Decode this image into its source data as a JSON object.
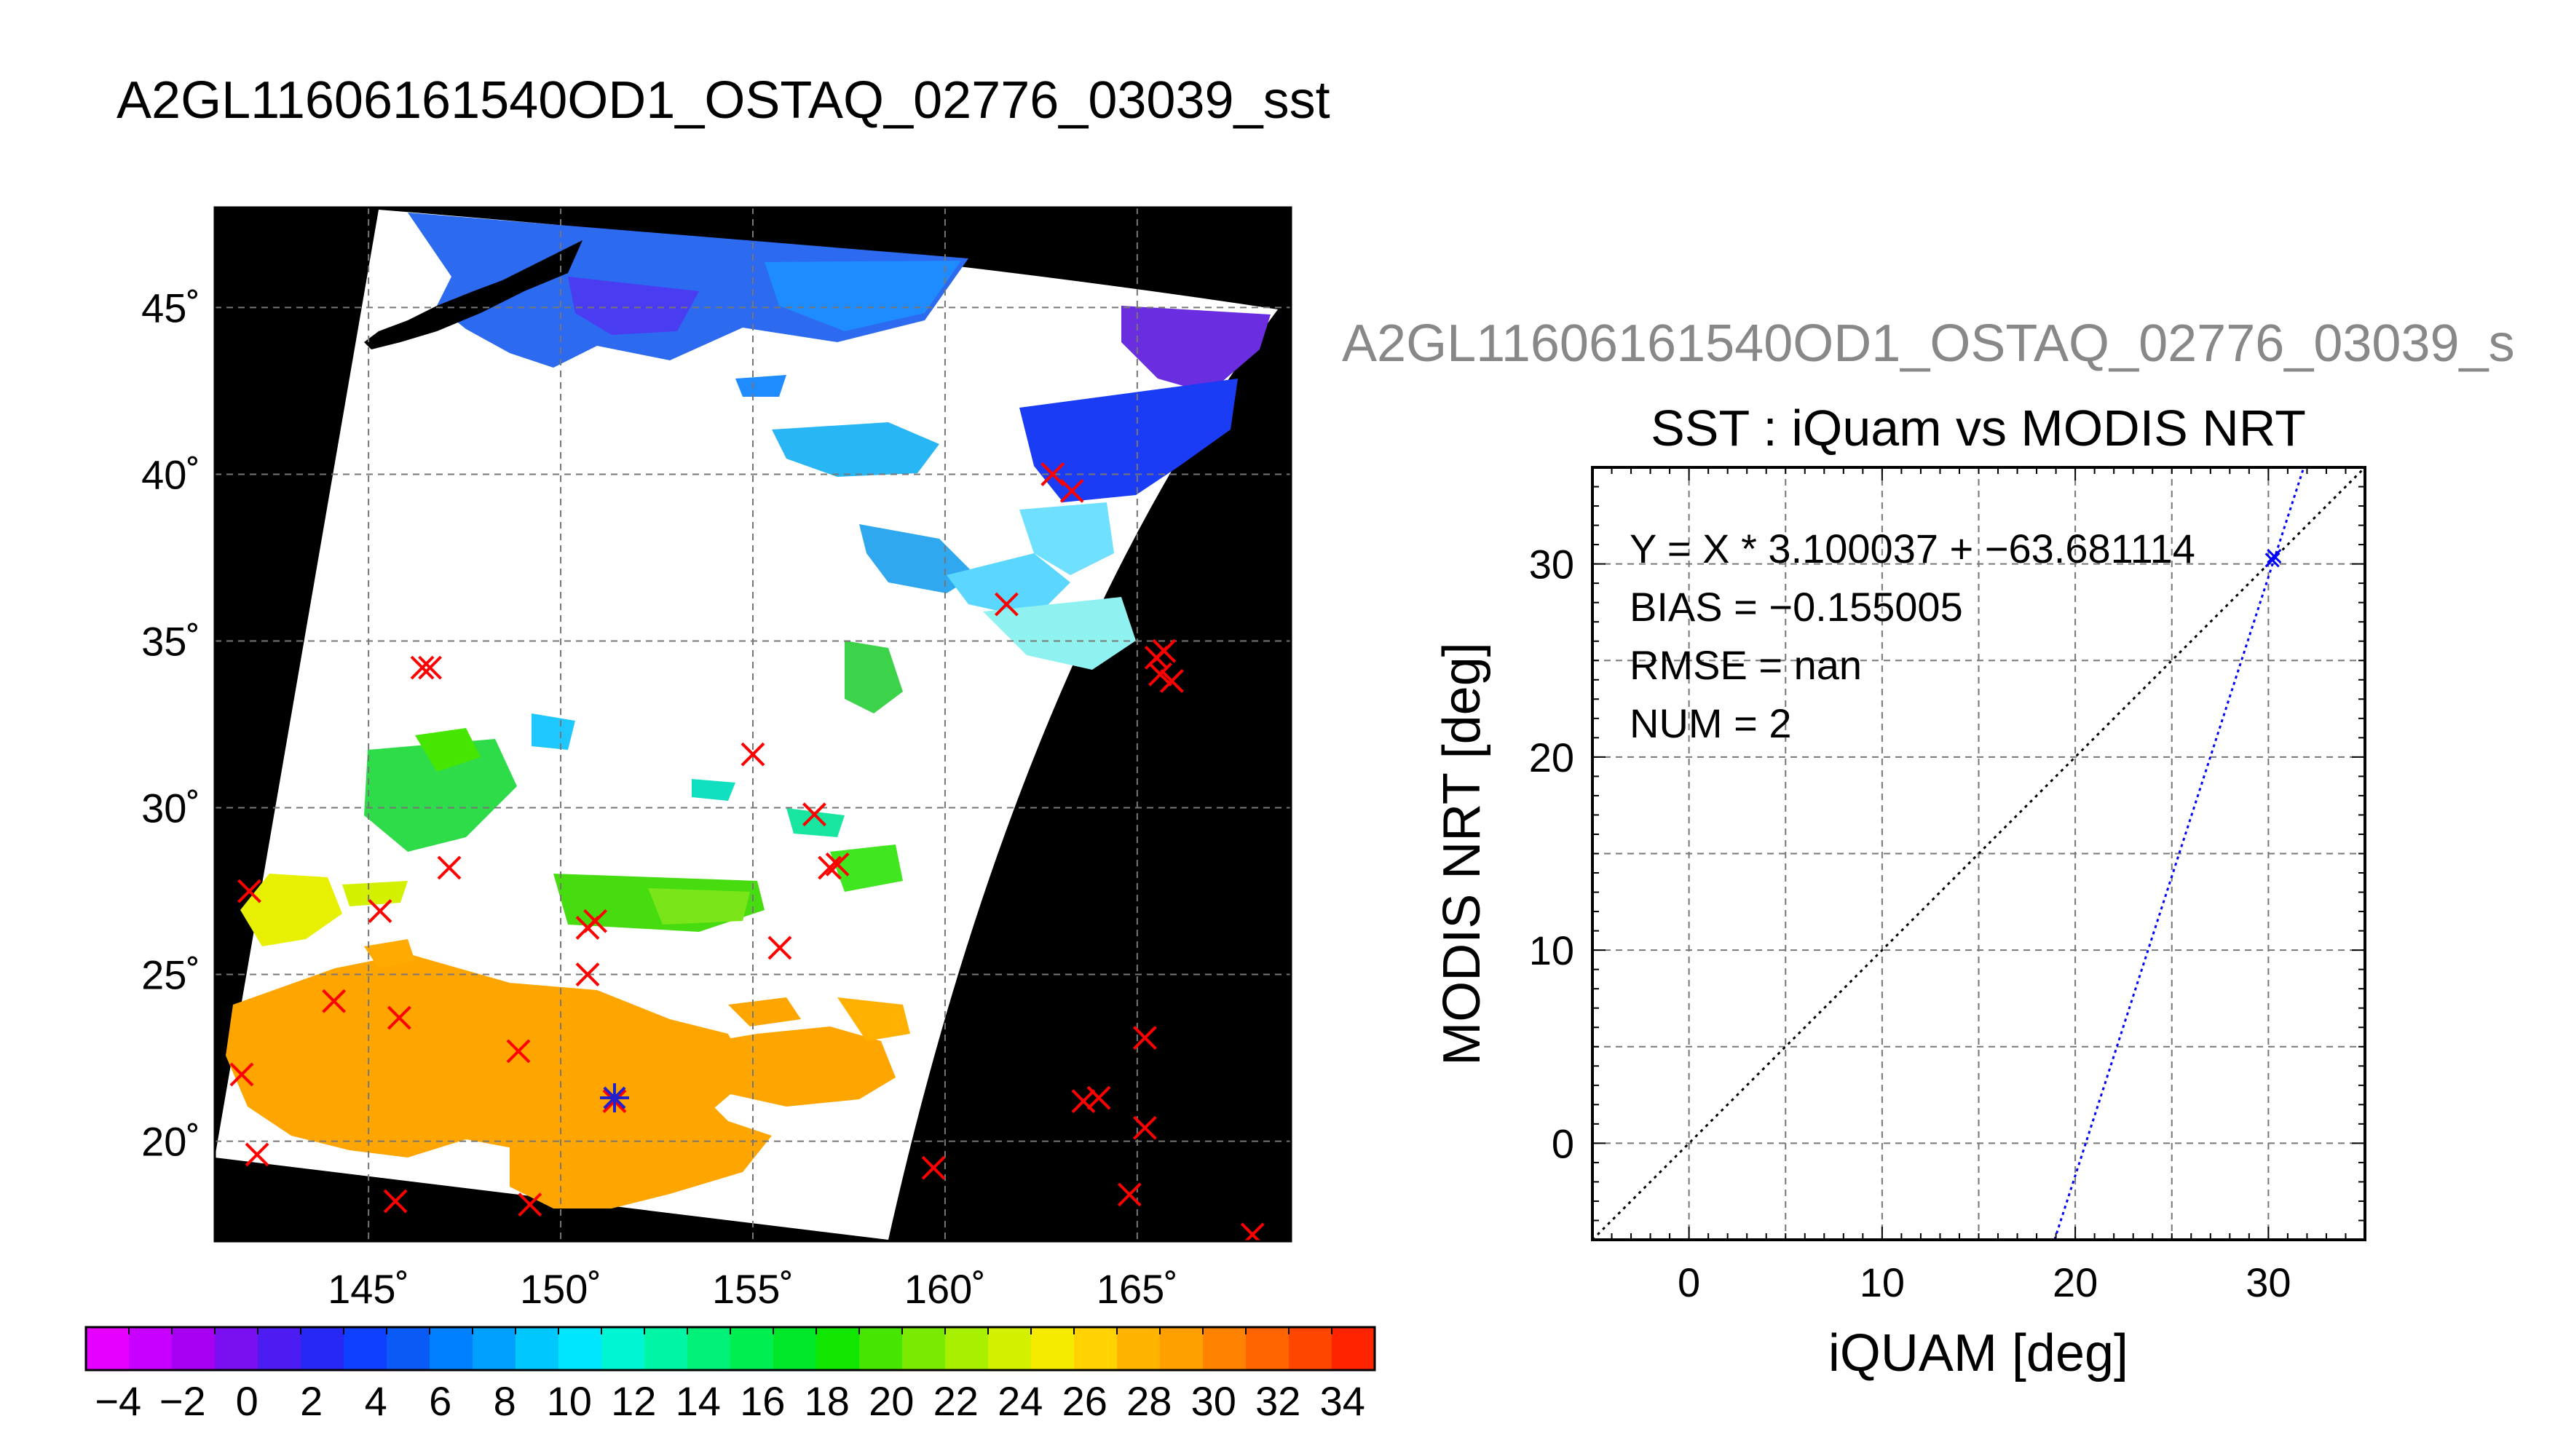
{
  "main_title": "A2GL11606161540OD1_OSTAQ_02776_03039_sst",
  "map": {
    "lon_ticks": [
      "145˚",
      "150˚",
      "155˚",
      "160˚",
      "165˚"
    ],
    "lat_ticks": [
      "45˚",
      "40˚",
      "35˚",
      "30˚",
      "25˚",
      "20˚"
    ],
    "lon_range": [
      141,
      169
    ],
    "lat_range": [
      17,
      48
    ],
    "grid": true
  },
  "colorbar": {
    "tick_labels": [
      "−4",
      "−2",
      "0",
      "2",
      "4",
      "6",
      "8",
      "10",
      "12",
      "14",
      "16",
      "18",
      "20",
      "22",
      "24",
      "26",
      "28",
      "30",
      "32",
      "34"
    ],
    "range": [
      -5,
      35
    ],
    "colors": [
      "#e600ff",
      "#c800ff",
      "#a800f0",
      "#7a10f0",
      "#4d1cf2",
      "#2828f5",
      "#1040ff",
      "#0a5af5",
      "#0080ff",
      "#00a0ff",
      "#00c8ff",
      "#00e6ff",
      "#00f5d2",
      "#00f5a5",
      "#00f078",
      "#00ee50",
      "#00e628",
      "#10e600",
      "#46e600",
      "#7aeb00",
      "#a8f000",
      "#d2f000",
      "#f5eb00",
      "#ffd200",
      "#ffb400",
      "#ffa000",
      "#ff8200",
      "#ff6400",
      "#ff4600",
      "#ff2400"
    ]
  },
  "scatter_panel": {
    "title": "A2GL11606161540OD1_OSTAQ_02776_03039_s",
    "subtitle": "SST : iQuam vs MODIS NRT",
    "xlabel": "iQUAM [deg]",
    "ylabel": "MODIS NRT [deg]",
    "stats": {
      "fit": "Y = X * 3.100037 + −63.681114",
      "bias": "BIAS = −0.155005",
      "rmse": "RMSE = nan",
      "num": "NUM = 2"
    }
  },
  "chart_data": [
    {
      "type": "scatter",
      "title": "A2GL11606161540OD1_OSTAQ_02776_03039_sst",
      "xlabel": "",
      "ylabel": "",
      "xlim": [
        141,
        169
      ],
      "ylim": [
        17,
        48
      ],
      "x_ticks": [
        145,
        150,
        155,
        160,
        165
      ],
      "y_ticks": [
        20,
        25,
        30,
        35,
        40,
        45
      ],
      "series": [
        {
          "name": "",
          "marker": "x",
          "color": "#ff0000",
          "points": [
            [
              141.9,
              27.5
            ],
            [
              145.3,
              26.9
            ],
            [
              147.1,
              28.2
            ],
            [
              141.7,
              22.0
            ],
            [
              142.1,
              19.6
            ],
            [
              144.1,
              24.2
            ],
            [
              145.8,
              23.7
            ],
            [
              146.4,
              34.2
            ],
            [
              146.6,
              34.2
            ],
            [
              148.9,
              22.7
            ],
            [
              149.2,
              18.1
            ],
            [
              150.7,
              25.0
            ],
            [
              150.9,
              26.6
            ],
            [
              150.7,
              26.4
            ],
            [
              151.4,
              21.2
            ],
            [
              145.7,
              18.2
            ],
            [
              155.0,
              31.6
            ],
            [
              155.7,
              25.8
            ],
            [
              156.6,
              29.8
            ],
            [
              157.0,
              28.2
            ],
            [
              157.2,
              28.3
            ],
            [
              159.7,
              19.2
            ],
            [
              161.6,
              36.1
            ],
            [
              162.8,
              40.0
            ],
            [
              163.3,
              39.5
            ],
            [
              163.6,
              21.2
            ],
            [
              164.0,
              21.3
            ],
            [
              164.8,
              18.4
            ],
            [
              165.2,
              23.1
            ],
            [
              165.2,
              20.4
            ],
            [
              165.5,
              34.5
            ],
            [
              165.6,
              34.0
            ],
            [
              165.9,
              33.8
            ],
            [
              165.7,
              34.7
            ],
            [
              168.0,
              17.2
            ]
          ]
        },
        {
          "name": "",
          "marker": "*",
          "color": "#2222cc",
          "points": [
            [
              151.4,
              21.3
            ]
          ]
        }
      ]
    },
    {
      "type": "scatter",
      "title": "SST : iQuam vs MODIS NRT",
      "xlabel": "iQUAM [deg]",
      "ylabel": "MODIS NRT [deg]",
      "xlim": [
        -5,
        35
      ],
      "ylim": [
        -5,
        35
      ],
      "x_ticks": [
        0,
        10,
        20,
        30
      ],
      "y_ticks": [
        0,
        10,
        20,
        30
      ],
      "grid": true,
      "series": [
        {
          "name": "",
          "marker": "x",
          "color": "#0000ff",
          "points": [
            [
              30.2,
              30.2
            ],
            [
              30.3,
              30.4
            ]
          ]
        }
      ],
      "lines": [
        {
          "name": "",
          "style": "dotted",
          "color": "#000000",
          "slope": 1,
          "intercept": 0
        },
        {
          "name": "",
          "style": "dotted",
          "color": "#0000ff",
          "slope": 3.100037,
          "intercept": -63.681114
        }
      ]
    }
  ]
}
